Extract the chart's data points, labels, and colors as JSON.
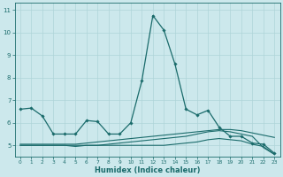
{
  "xlabel": "Humidex (Indice chaleur)",
  "background_color": "#cce8ec",
  "grid_color": "#afd4d8",
  "line_color": "#1a6b6b",
  "xlim": [
    -0.5,
    23.5
  ],
  "ylim": [
    4.5,
    11.3
  ],
  "yticks": [
    5,
    6,
    7,
    8,
    9,
    10,
    11
  ],
  "xticks": [
    0,
    1,
    2,
    3,
    4,
    5,
    6,
    7,
    8,
    9,
    10,
    11,
    12,
    13,
    14,
    15,
    16,
    17,
    18,
    19,
    20,
    21,
    22,
    23
  ],
  "line1_x": [
    0,
    1,
    2,
    3,
    4,
    5,
    6,
    7,
    8,
    9,
    10,
    11,
    12,
    13,
    14,
    15,
    16,
    17,
    18,
    19,
    20,
    21,
    22,
    23
  ],
  "line1_y": [
    6.6,
    6.65,
    6.3,
    5.5,
    5.5,
    5.5,
    6.1,
    6.05,
    5.5,
    5.5,
    6.0,
    7.85,
    10.75,
    10.1,
    8.6,
    6.6,
    6.35,
    6.55,
    5.8,
    5.4,
    5.4,
    5.1,
    5.05,
    4.65
  ],
  "line2_x": [
    0,
    1,
    2,
    3,
    4,
    5,
    6,
    7,
    8,
    9,
    10,
    11,
    12,
    13,
    14,
    15,
    16,
    17,
    18,
    19,
    20,
    21,
    22,
    23
  ],
  "line2_y": [
    5.05,
    5.05,
    5.05,
    5.05,
    5.05,
    5.05,
    5.1,
    5.15,
    5.2,
    5.25,
    5.3,
    5.35,
    5.4,
    5.45,
    5.5,
    5.55,
    5.6,
    5.65,
    5.7,
    5.7,
    5.65,
    5.55,
    5.45,
    5.35
  ],
  "line3_x": [
    0,
    1,
    2,
    3,
    4,
    5,
    6,
    7,
    8,
    9,
    10,
    11,
    12,
    13,
    14,
    15,
    16,
    17,
    18,
    19,
    20,
    21,
    22,
    23
  ],
  "line3_y": [
    5.0,
    5.0,
    5.0,
    5.0,
    5.0,
    4.95,
    5.0,
    5.0,
    5.05,
    5.1,
    5.15,
    5.2,
    5.25,
    5.3,
    5.35,
    5.4,
    5.5,
    5.6,
    5.65,
    5.6,
    5.5,
    5.4,
    4.9,
    4.6
  ],
  "line4_x": [
    0,
    1,
    2,
    3,
    4,
    5,
    6,
    7,
    8,
    9,
    10,
    11,
    12,
    13,
    14,
    15,
    16,
    17,
    18,
    19,
    20,
    21,
    22,
    23
  ],
  "line4_y": [
    5.0,
    5.0,
    5.0,
    5.0,
    5.0,
    5.0,
    5.0,
    5.0,
    5.0,
    5.0,
    5.0,
    5.0,
    5.0,
    5.0,
    5.05,
    5.1,
    5.15,
    5.25,
    5.3,
    5.25,
    5.2,
    5.05,
    4.95,
    4.6
  ],
  "tick_fontsize": 5.0,
  "xlabel_fontsize": 6.0
}
